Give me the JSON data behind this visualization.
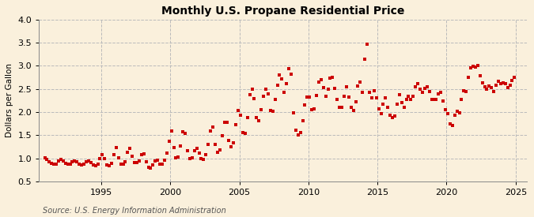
{
  "title": "Monthly U.S. Propane Residential Price",
  "ylabel": "Dollars per Gallon",
  "source": "Source: U.S. Energy Information Administration",
  "background_color": "#FAF0DC",
  "marker_color": "#CC0000",
  "xlim_start": 1990.5,
  "xlim_end": 2025.8,
  "ylim": [
    0.5,
    4.0
  ],
  "yticks": [
    0.5,
    1.0,
    1.5,
    2.0,
    2.5,
    3.0,
    3.5,
    4.0
  ],
  "xticks": [
    1995,
    2000,
    2005,
    2010,
    2015,
    2020,
    2025
  ],
  "data": [
    [
      1990.917,
      1.003
    ],
    [
      1991.083,
      0.97
    ],
    [
      1991.25,
      0.92
    ],
    [
      1991.417,
      0.883
    ],
    [
      1991.583,
      0.87
    ],
    [
      1991.75,
      0.88
    ],
    [
      1991.917,
      0.94
    ],
    [
      1992.083,
      0.975
    ],
    [
      1992.25,
      0.948
    ],
    [
      1992.417,
      0.888
    ],
    [
      1992.583,
      0.868
    ],
    [
      1992.75,
      0.878
    ],
    [
      1992.917,
      0.917
    ],
    [
      1993.083,
      0.948
    ],
    [
      1993.25,
      0.925
    ],
    [
      1993.417,
      0.871
    ],
    [
      1993.583,
      0.86
    ],
    [
      1993.75,
      0.873
    ],
    [
      1993.917,
      0.915
    ],
    [
      1994.083,
      0.938
    ],
    [
      1994.25,
      0.91
    ],
    [
      1994.417,
      0.861
    ],
    [
      1994.583,
      0.843
    ],
    [
      1994.75,
      0.87
    ],
    [
      1994.917,
      0.984
    ],
    [
      1995.083,
      1.085
    ],
    [
      1995.25,
      0.987
    ],
    [
      1995.417,
      0.86
    ],
    [
      1995.583,
      0.845
    ],
    [
      1995.75,
      0.883
    ],
    [
      1995.917,
      1.082
    ],
    [
      1996.083,
      1.225
    ],
    [
      1996.25,
      1.01
    ],
    [
      1996.417,
      0.868
    ],
    [
      1996.583,
      0.865
    ],
    [
      1996.75,
      0.92
    ],
    [
      1996.917,
      1.122
    ],
    [
      1997.083,
      1.222
    ],
    [
      1997.25,
      1.042
    ],
    [
      1997.417,
      0.903
    ],
    [
      1997.583,
      0.9
    ],
    [
      1997.75,
      0.94
    ],
    [
      1997.917,
      1.072
    ],
    [
      1998.083,
      1.102
    ],
    [
      1998.25,
      0.918
    ],
    [
      1998.417,
      0.797
    ],
    [
      1998.583,
      0.792
    ],
    [
      1998.75,
      0.857
    ],
    [
      1998.917,
      0.94
    ],
    [
      1999.083,
      0.95
    ],
    [
      1999.25,
      0.878
    ],
    [
      1999.417,
      0.872
    ],
    [
      1999.583,
      0.958
    ],
    [
      1999.75,
      1.103
    ],
    [
      1999.917,
      1.362
    ],
    [
      2000.083,
      1.582
    ],
    [
      2000.25,
      1.232
    ],
    [
      2000.417,
      1.01
    ],
    [
      2000.583,
      1.028
    ],
    [
      2000.75,
      1.262
    ],
    [
      2000.917,
      1.573
    ],
    [
      2001.083,
      1.53
    ],
    [
      2001.25,
      1.16
    ],
    [
      2001.417,
      0.984
    ],
    [
      2001.583,
      1.008
    ],
    [
      2001.75,
      1.16
    ],
    [
      2001.917,
      1.222
    ],
    [
      2002.083,
      1.11
    ],
    [
      2002.25,
      0.988
    ],
    [
      2002.417,
      0.983
    ],
    [
      2002.583,
      1.082
    ],
    [
      2002.75,
      1.292
    ],
    [
      2002.917,
      1.592
    ],
    [
      2003.083,
      1.682
    ],
    [
      2003.25,
      1.3
    ],
    [
      2003.417,
      1.12
    ],
    [
      2003.583,
      1.188
    ],
    [
      2003.75,
      1.49
    ],
    [
      2003.917,
      1.782
    ],
    [
      2004.083,
      1.78
    ],
    [
      2004.25,
      1.388
    ],
    [
      2004.417,
      1.242
    ],
    [
      2004.583,
      1.338
    ],
    [
      2004.75,
      1.722
    ],
    [
      2004.917,
      2.03
    ],
    [
      2005.083,
      1.93
    ],
    [
      2005.25,
      1.558
    ],
    [
      2005.417,
      1.542
    ],
    [
      2005.583,
      1.882
    ],
    [
      2005.75,
      2.372
    ],
    [
      2005.917,
      2.502
    ],
    [
      2006.083,
      2.29
    ],
    [
      2006.25,
      1.878
    ],
    [
      2006.417,
      1.808
    ],
    [
      2006.583,
      2.048
    ],
    [
      2006.75,
      2.342
    ],
    [
      2006.917,
      2.502
    ],
    [
      2007.083,
      2.39
    ],
    [
      2007.25,
      2.038
    ],
    [
      2007.417,
      2.012
    ],
    [
      2007.583,
      2.268
    ],
    [
      2007.75,
      2.588
    ],
    [
      2007.917,
      2.808
    ],
    [
      2008.083,
      2.722
    ],
    [
      2008.25,
      2.432
    ],
    [
      2008.417,
      2.618
    ],
    [
      2008.583,
      2.938
    ],
    [
      2008.75,
      2.818
    ],
    [
      2008.917,
      1.988
    ],
    [
      2009.083,
      1.608
    ],
    [
      2009.25,
      1.51
    ],
    [
      2009.417,
      1.558
    ],
    [
      2009.583,
      1.808
    ],
    [
      2009.75,
      2.158
    ],
    [
      2009.917,
      2.328
    ],
    [
      2010.083,
      2.328
    ],
    [
      2010.25,
      2.058
    ],
    [
      2010.417,
      2.06
    ],
    [
      2010.583,
      2.358
    ],
    [
      2010.75,
      2.648
    ],
    [
      2010.917,
      2.698
    ],
    [
      2011.083,
      2.528
    ],
    [
      2011.25,
      2.348
    ],
    [
      2011.417,
      2.498
    ],
    [
      2011.583,
      2.738
    ],
    [
      2011.75,
      2.758
    ],
    [
      2011.917,
      2.518
    ],
    [
      2012.083,
      2.278
    ],
    [
      2012.25,
      2.108
    ],
    [
      2012.417,
      2.098
    ],
    [
      2012.583,
      2.338
    ],
    [
      2012.75,
      2.538
    ],
    [
      2012.917,
      2.328
    ],
    [
      2013.083,
      2.108
    ],
    [
      2013.25,
      2.028
    ],
    [
      2013.417,
      2.228
    ],
    [
      2013.583,
      2.568
    ],
    [
      2013.75,
      2.648
    ],
    [
      2013.917,
      2.418
    ],
    [
      2014.083,
      3.148
    ],
    [
      2014.25,
      3.468
    ],
    [
      2014.417,
      2.428
    ],
    [
      2014.583,
      2.308
    ],
    [
      2014.75,
      2.468
    ],
    [
      2014.917,
      2.308
    ],
    [
      2015.083,
      2.068
    ],
    [
      2015.25,
      1.968
    ],
    [
      2015.417,
      2.168
    ],
    [
      2015.583,
      2.308
    ],
    [
      2015.75,
      2.098
    ],
    [
      2015.917,
      1.928
    ],
    [
      2016.083,
      1.888
    ],
    [
      2016.25,
      1.908
    ],
    [
      2016.417,
      2.178
    ],
    [
      2016.583,
      2.378
    ],
    [
      2016.75,
      2.208
    ],
    [
      2016.917,
      2.098
    ],
    [
      2017.083,
      2.278
    ],
    [
      2017.25,
      2.338
    ],
    [
      2017.417,
      2.278
    ],
    [
      2017.583,
      2.338
    ],
    [
      2017.75,
      2.548
    ],
    [
      2017.917,
      2.618
    ],
    [
      2018.083,
      2.498
    ],
    [
      2018.25,
      2.428
    ],
    [
      2018.417,
      2.508
    ],
    [
      2018.583,
      2.548
    ],
    [
      2018.75,
      2.438
    ],
    [
      2018.917,
      2.278
    ],
    [
      2019.083,
      2.278
    ],
    [
      2019.25,
      2.278
    ],
    [
      2019.417,
      2.398
    ],
    [
      2019.583,
      2.418
    ],
    [
      2019.75,
      2.238
    ],
    [
      2019.917,
      2.058
    ],
    [
      2020.083,
      1.958
    ],
    [
      2020.25,
      1.748
    ],
    [
      2020.417,
      1.708
    ],
    [
      2020.583,
      1.928
    ],
    [
      2020.75,
      2.008
    ],
    [
      2020.917,
      1.978
    ],
    [
      2021.083,
      2.278
    ],
    [
      2021.25,
      2.468
    ],
    [
      2021.417,
      2.438
    ],
    [
      2021.583,
      2.748
    ],
    [
      2021.75,
      2.958
    ],
    [
      2021.917,
      2.988
    ],
    [
      2022.083,
      2.968
    ],
    [
      2022.25,
      3.008
    ],
    [
      2022.417,
      2.788
    ],
    [
      2022.583,
      2.638
    ],
    [
      2022.75,
      2.538
    ],
    [
      2022.917,
      2.488
    ],
    [
      2023.083,
      2.568
    ],
    [
      2023.25,
      2.528
    ],
    [
      2023.417,
      2.448
    ],
    [
      2023.583,
      2.588
    ],
    [
      2023.75,
      2.658
    ],
    [
      2023.917,
      2.608
    ],
    [
      2024.083,
      2.628
    ],
    [
      2024.25,
      2.608
    ],
    [
      2024.417,
      2.528
    ],
    [
      2024.583,
      2.578
    ],
    [
      2024.75,
      2.678
    ],
    [
      2024.917,
      2.758
    ]
  ]
}
